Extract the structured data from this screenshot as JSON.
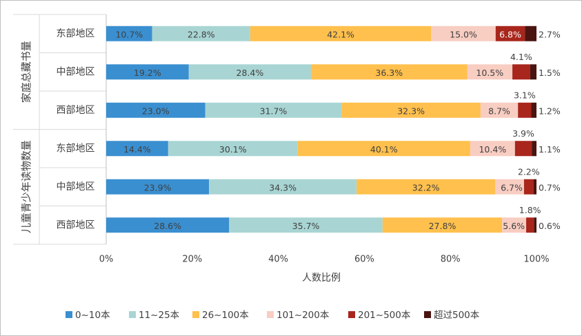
{
  "chart_data": {
    "type": "bar",
    "orientation": "horizontal",
    "stacked": "percent",
    "xlabel": "人数比例",
    "xlim": [
      0,
      100
    ],
    "x_ticks": [
      "0%",
      "20%",
      "40%",
      "60%",
      "80%",
      "100%"
    ],
    "grid": false,
    "legend_position": "bottom",
    "groups": [
      {
        "label": "家庭总藏书量",
        "rows": [
          0,
          1,
          2
        ]
      },
      {
        "label": "儿童青少年读物数量",
        "rows": [
          3,
          4,
          5
        ]
      }
    ],
    "categories": [
      "东部地区",
      "中部地区",
      "西部地区",
      "东部地区",
      "中部地区",
      "西部地区"
    ],
    "series": [
      {
        "name": "0~10本",
        "color": "#3a8fd0",
        "values": [
          10.7,
          19.2,
          23.0,
          14.4,
          23.9,
          28.6
        ]
      },
      {
        "name": "11~25本",
        "color": "#a8d5d3",
        "values": [
          22.8,
          28.4,
          31.7,
          30.1,
          34.3,
          35.7
        ]
      },
      {
        "name": "26~100本",
        "color": "#ffc04d",
        "values": [
          42.1,
          36.3,
          32.3,
          40.1,
          32.2,
          27.8
        ]
      },
      {
        "name": "101~200本",
        "color": "#f8cdc2",
        "values": [
          15.0,
          10.5,
          8.7,
          10.4,
          6.7,
          5.6
        ]
      },
      {
        "name": "201~500本",
        "color": "#a8261c",
        "values": [
          6.8,
          4.1,
          3.1,
          3.9,
          2.2,
          1.8
        ]
      },
      {
        "name": "超过500本",
        "color": "#4a1410",
        "values": [
          2.7,
          1.5,
          1.2,
          1.1,
          0.7,
          0.6
        ]
      }
    ],
    "data_labels": [
      [
        "10.7%",
        "22.8%",
        "42.1%",
        "15.0%",
        "6.8%",
        "2.7%"
      ],
      [
        "19.2%",
        "28.4%",
        "36.3%",
        "10.5%",
        "4.1%",
        "1.5%"
      ],
      [
        "23.0%",
        "31.7%",
        "32.3%",
        "8.7%",
        "3.1%",
        "1.2%"
      ],
      [
        "14.4%",
        "30.1%",
        "40.1%",
        "10.4%",
        "3.9%",
        "1.1%"
      ],
      [
        "23.9%",
        "34.3%",
        "32.2%",
        "6.7%",
        "2.2%",
        "0.7%"
      ],
      [
        "28.6%",
        "35.7%",
        "27.8%",
        "5.6%",
        "1.8%",
        "0.6%"
      ]
    ]
  }
}
